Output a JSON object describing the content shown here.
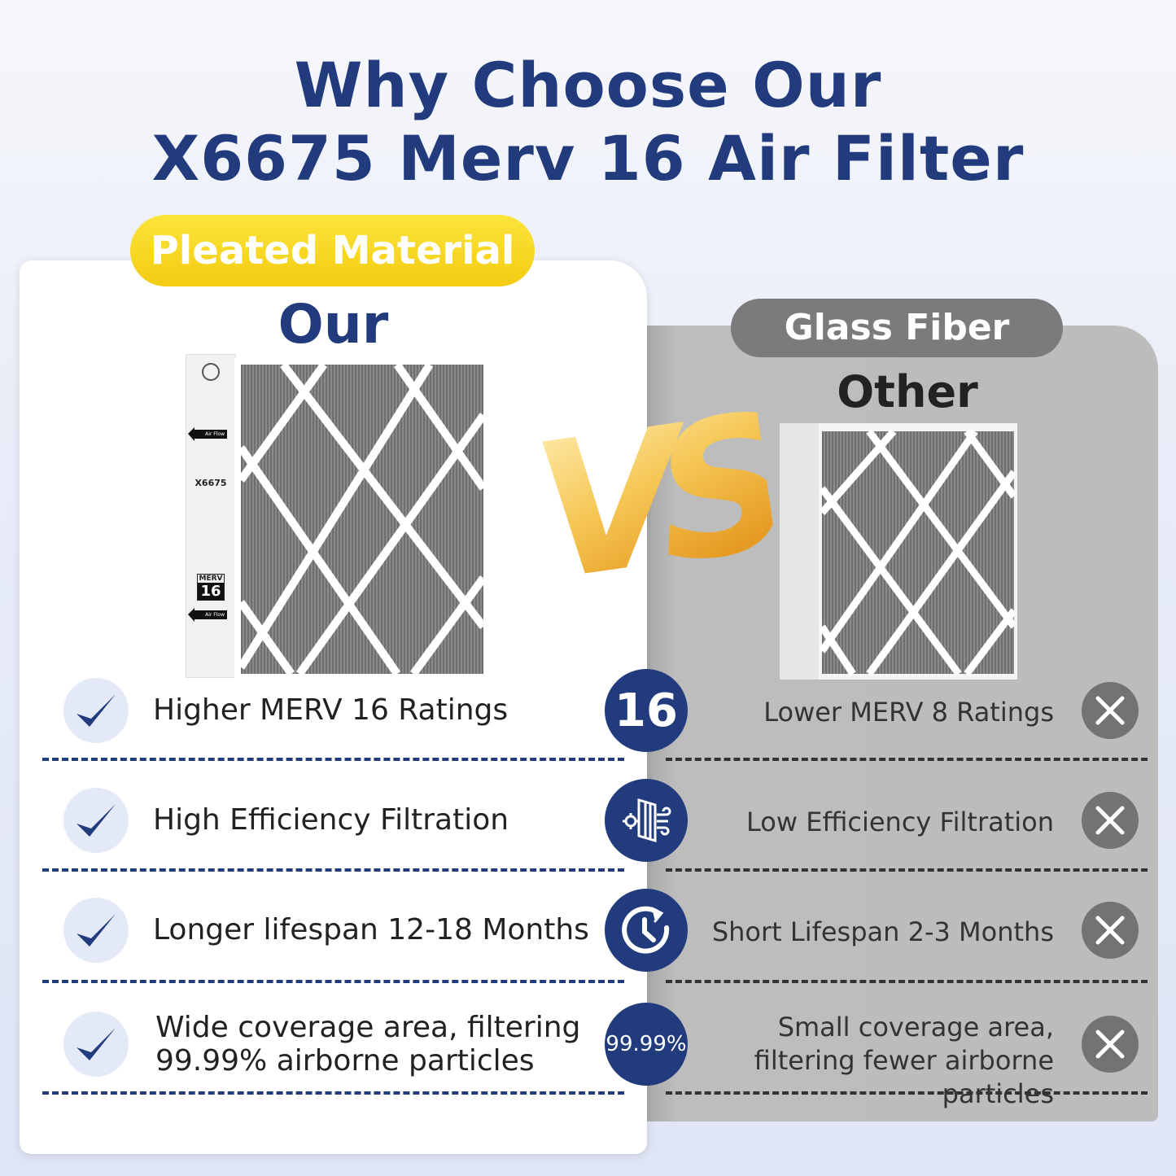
{
  "title": {
    "line1": "Why Choose Our",
    "line2": "X6675 Merv 16 Air Filter"
  },
  "left": {
    "badge": "Pleated Material",
    "heading": "Our",
    "box_label": {
      "model": "X6675",
      "merv": "MERV",
      "merv_value": "16",
      "airflow": "Air Flow"
    },
    "features": [
      {
        "text": "Higher MERV 16 Ratings",
        "icon": "merv-16-badge",
        "icon_text": "16"
      },
      {
        "text": "High Efficiency Filtration",
        "icon": "filter-airflow-icon"
      },
      {
        "text": "Longer lifespan 12-18 Months",
        "icon": "clock-refresh-icon"
      },
      {
        "text": "Wide coverage area, filtering 99.99% airborne particles",
        "icon": "percent-badge",
        "icon_text": "99.99%"
      }
    ]
  },
  "vs": "VS",
  "right": {
    "badge": "Glass Fiber",
    "heading": "Other",
    "features": [
      {
        "text": "Lower MERV 8 Ratings"
      },
      {
        "text": "Low Efficiency Filtration"
      },
      {
        "text": "Short Lifespan 2-3 Months"
      },
      {
        "text": "Small coverage area, filtering fewer airborne particles"
      }
    ]
  },
  "colors": {
    "navy": "#213b7d",
    "yellow": "#f5d020",
    "gray_panel": "#bcbcbc",
    "gray_pill": "#7b7b7b"
  }
}
